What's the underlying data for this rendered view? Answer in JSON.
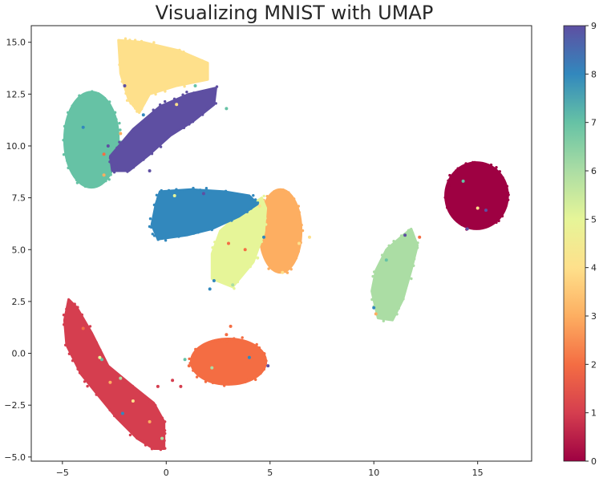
{
  "chart_data": {
    "type": "scatter",
    "title": "Visualizing MNIST with UMAP",
    "xlabel": "",
    "ylabel": "",
    "xlim": [
      -6.5,
      17.6
    ],
    "ylim": [
      -5.2,
      15.8
    ],
    "x_ticks": [
      {
        "value": -5,
        "label": "−5"
      },
      {
        "value": 0,
        "label": "0"
      },
      {
        "value": 5,
        "label": "5"
      },
      {
        "value": 10,
        "label": "10"
      },
      {
        "value": 15,
        "label": "15"
      }
    ],
    "y_ticks": [
      {
        "value": -5.0,
        "label": "−5.0"
      },
      {
        "value": -2.5,
        "label": "−2.5"
      },
      {
        "value": 0.0,
        "label": "0.0"
      },
      {
        "value": 2.5,
        "label": "2.5"
      },
      {
        "value": 5.0,
        "label": "5.0"
      },
      {
        "value": 7.5,
        "label": "7.5"
      },
      {
        "value": 10.0,
        "label": "10.0"
      },
      {
        "value": 12.5,
        "label": "12.5"
      },
      {
        "value": 15.0,
        "label": "15.0"
      }
    ],
    "grid": false,
    "colormap": "Spectral",
    "colorbar": {
      "min": 0,
      "max": 9,
      "ticks": [
        "0",
        "1",
        "2",
        "3",
        "4",
        "5",
        "6",
        "7",
        "8",
        "9"
      ],
      "colors": [
        "#9e0142",
        "#d53e4f",
        "#f46d43",
        "#fdae61",
        "#fee08b",
        "#e6f598",
        "#abdda4",
        "#66c2a5",
        "#3288bd",
        "#5e4fa2"
      ]
    },
    "clusters": [
      {
        "label": 0,
        "color": "#9e0142",
        "shape": "ellipse",
        "center": [
          14.95,
          7.6
        ],
        "radii": [
          1.5,
          1.6
        ],
        "angle": 0
      },
      {
        "label": 1,
        "color": "#d53e4f",
        "shape": "polygon",
        "points": [
          [
            -4.7,
            2.6
          ],
          [
            -4.3,
            2.2
          ],
          [
            -3.6,
            1.0
          ],
          [
            -2.8,
            -0.6
          ],
          [
            -1.6,
            -1.6
          ],
          [
            -0.6,
            -2.4
          ],
          [
            -0.1,
            -3.3
          ],
          [
            -0.1,
            -4.6
          ],
          [
            -0.6,
            -4.6
          ],
          [
            -1.4,
            -4.1
          ],
          [
            -2.4,
            -3.1
          ],
          [
            -3.3,
            -2.0
          ],
          [
            -4.1,
            -1.0
          ],
          [
            -4.8,
            0.4
          ],
          [
            -4.9,
            1.6
          ]
        ]
      },
      {
        "label": 2,
        "color": "#f46d43",
        "shape": "ellipse",
        "center": [
          3.0,
          -0.4
        ],
        "radii": [
          1.8,
          1.1
        ],
        "angle": 0
      },
      {
        "label": 3,
        "color": "#fdae61",
        "shape": "ellipse",
        "center": [
          5.5,
          5.9
        ],
        "radii": [
          1.0,
          2.0
        ],
        "angle": 0
      },
      {
        "label": 4,
        "color": "#fee08b",
        "shape": "polygon",
        "points": [
          [
            -2.3,
            15.1
          ],
          [
            -1.1,
            15.0
          ],
          [
            0.6,
            14.6
          ],
          [
            2.0,
            14.0
          ],
          [
            2.0,
            13.2
          ],
          [
            0.5,
            12.9
          ],
          [
            -0.8,
            12.5
          ],
          [
            -1.3,
            11.6
          ],
          [
            -1.8,
            12.2
          ],
          [
            -2.2,
            13.5
          ]
        ]
      },
      {
        "label": 5,
        "color": "#e6f598",
        "shape": "polygon",
        "points": [
          [
            4.6,
            7.5
          ],
          [
            3.6,
            6.8
          ],
          [
            2.6,
            5.9
          ],
          [
            2.2,
            4.8
          ],
          [
            2.2,
            3.6
          ],
          [
            3.2,
            3.2
          ],
          [
            4.2,
            4.4
          ],
          [
            4.7,
            5.8
          ],
          [
            4.8,
            7.0
          ]
        ]
      },
      {
        "label": 6,
        "color": "#abdda4",
        "shape": "polygon",
        "points": [
          [
            11.8,
            6.0
          ],
          [
            11.3,
            5.6
          ],
          [
            10.6,
            5.0
          ],
          [
            10.1,
            4.0
          ],
          [
            9.9,
            3.0
          ],
          [
            10.2,
            1.7
          ],
          [
            10.9,
            1.6
          ],
          [
            11.4,
            2.6
          ],
          [
            11.8,
            4.0
          ],
          [
            12.1,
            5.2
          ]
        ]
      },
      {
        "label": 7,
        "color": "#66c2a5",
        "shape": "ellipse",
        "center": [
          -3.6,
          10.3
        ],
        "radii": [
          1.3,
          2.3
        ],
        "angle": 0
      },
      {
        "label": 8,
        "color": "#3288bd",
        "shape": "polygon",
        "points": [
          [
            -0.3,
            7.8
          ],
          [
            1.2,
            7.9
          ],
          [
            2.8,
            7.8
          ],
          [
            4.0,
            7.6
          ],
          [
            4.4,
            7.2
          ],
          [
            3.5,
            6.6
          ],
          [
            2.2,
            6.0
          ],
          [
            1.0,
            5.7
          ],
          [
            -0.4,
            5.5
          ],
          [
            -0.7,
            6.2
          ],
          [
            -0.5,
            7.2
          ]
        ]
      },
      {
        "label": 9,
        "color": "#5e4fa2",
        "shape": "polygon",
        "points": [
          [
            -2.7,
            9.5
          ],
          [
            -1.6,
            10.8
          ],
          [
            -0.3,
            11.9
          ],
          [
            1.1,
            12.5
          ],
          [
            2.4,
            12.8
          ],
          [
            2.3,
            12.0
          ],
          [
            1.3,
            11.2
          ],
          [
            0.2,
            10.5
          ],
          [
            -0.8,
            9.6
          ],
          [
            -1.8,
            8.8
          ],
          [
            -2.6,
            8.8
          ]
        ]
      }
    ],
    "outliers": [
      {
        "x": -1.1,
        "y": 11.5,
        "label": 8
      },
      {
        "x": -2.0,
        "y": 12.9,
        "label": 9
      },
      {
        "x": 2.9,
        "y": 11.8,
        "label": 7
      },
      {
        "x": -2.2,
        "y": 10.6,
        "label": 3
      },
      {
        "x": -3.0,
        "y": 8.6,
        "label": 3
      },
      {
        "x": -3.0,
        "y": 9.6,
        "label": 2
      },
      {
        "x": -4.0,
        "y": 10.9,
        "label": 8
      },
      {
        "x": 0.5,
        "y": 12.0,
        "label": 4
      },
      {
        "x": 1.4,
        "y": 12.9,
        "label": 7
      },
      {
        "x": -0.8,
        "y": 8.8,
        "label": 9
      },
      {
        "x": -2.4,
        "y": 9.1,
        "label": 9
      },
      {
        "x": -2.8,
        "y": 10.0,
        "label": 9
      },
      {
        "x": 3.0,
        "y": 5.3,
        "label": 2
      },
      {
        "x": 3.8,
        "y": 5.0,
        "label": 2
      },
      {
        "x": 4.4,
        "y": 4.6,
        "label": 5
      },
      {
        "x": 2.3,
        "y": 3.5,
        "label": 8
      },
      {
        "x": 2.1,
        "y": 3.1,
        "label": 8
      },
      {
        "x": 3.2,
        "y": 3.3,
        "label": 6
      },
      {
        "x": 4.5,
        "y": 7.1,
        "label": 4
      },
      {
        "x": 6.4,
        "y": 5.3,
        "label": 4
      },
      {
        "x": 5.6,
        "y": 3.9,
        "label": 4
      },
      {
        "x": 4.7,
        "y": 5.6,
        "label": 8
      },
      {
        "x": 0.4,
        "y": 7.6,
        "label": 5
      },
      {
        "x": 1.8,
        "y": 7.7,
        "label": 9
      },
      {
        "x": 6.9,
        "y": 5.6,
        "label": 4
      },
      {
        "x": 10.0,
        "y": 2.2,
        "label": 8
      },
      {
        "x": 10.1,
        "y": 1.9,
        "label": 3
      },
      {
        "x": 10.6,
        "y": 4.5,
        "label": 7
      },
      {
        "x": 11.5,
        "y": 5.7,
        "label": 9
      },
      {
        "x": 12.2,
        "y": 5.6,
        "label": 2
      },
      {
        "x": 14.5,
        "y": 6.0,
        "label": 9
      },
      {
        "x": 15.0,
        "y": 7.0,
        "label": 4
      },
      {
        "x": 14.3,
        "y": 8.3,
        "label": 7
      },
      {
        "x": 15.4,
        "y": 6.9,
        "label": 9
      },
      {
        "x": 0.7,
        "y": -1.6,
        "label": 1
      },
      {
        "x": -0.4,
        "y": -1.6,
        "label": 1
      },
      {
        "x": 0.3,
        "y": -1.3,
        "label": 1
      },
      {
        "x": -1.7,
        "y": -1.7,
        "label": 1
      },
      {
        "x": 4.9,
        "y": -0.6,
        "label": 9
      },
      {
        "x": 1.1,
        "y": -0.6,
        "label": 2
      },
      {
        "x": 3.1,
        "y": 1.3,
        "label": 2
      },
      {
        "x": 2.9,
        "y": 0.9,
        "label": 2
      },
      {
        "x": -2.2,
        "y": -1.2,
        "label": 6
      },
      {
        "x": -3.1,
        "y": -0.3,
        "label": 7
      },
      {
        "x": -1.6,
        "y": -2.3,
        "label": 4
      },
      {
        "x": -4.0,
        "y": 1.2,
        "label": 2
      },
      {
        "x": -0.8,
        "y": -3.3,
        "label": 3
      },
      {
        "x": -3.2,
        "y": -0.2,
        "label": 5
      },
      {
        "x": -2.7,
        "y": -1.4,
        "label": 3
      },
      {
        "x": -0.2,
        "y": -4.1,
        "label": 6
      },
      {
        "x": -2.1,
        "y": -2.9,
        "label": 8
      },
      {
        "x": 4.0,
        "y": -0.2,
        "label": 8
      },
      {
        "x": 2.2,
        "y": -0.7,
        "label": 6
      },
      {
        "x": 0.9,
        "y": -0.3,
        "label": 7
      }
    ]
  }
}
